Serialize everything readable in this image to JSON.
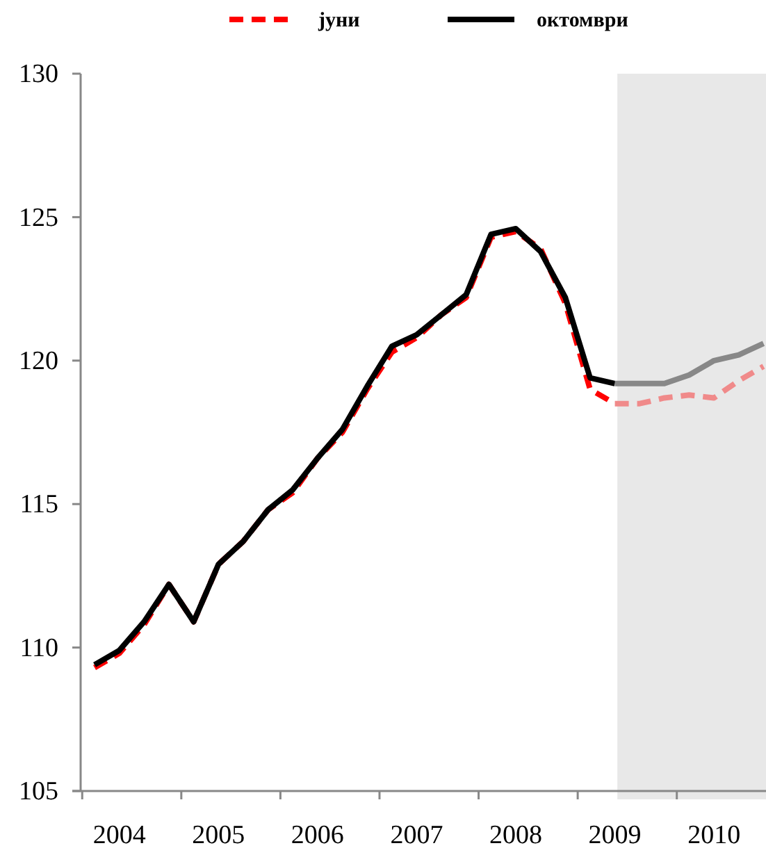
{
  "chart_data": {
    "type": "line",
    "ylim": [
      105,
      130
    ],
    "yticks": [
      105,
      110,
      115,
      120,
      125,
      130
    ],
    "xlim": [
      2003.9,
      2010.9
    ],
    "xticks": [
      {
        "value": 2004,
        "label": null
      },
      {
        "value": 2004.375,
        "label": "2004"
      },
      {
        "value": 2005,
        "label": null
      },
      {
        "value": 2005.375,
        "label": "2005"
      },
      {
        "value": 2006,
        "label": null
      },
      {
        "value": 2006.375,
        "label": "2006"
      },
      {
        "value": 2007,
        "label": null
      },
      {
        "value": 2007.375,
        "label": "2007"
      },
      {
        "value": 2008,
        "label": null
      },
      {
        "value": 2008.375,
        "label": "2008"
      },
      {
        "value": 2009,
        "label": null
      },
      {
        "value": 2009.375,
        "label": "2009"
      },
      {
        "value": 2010,
        "label": null
      },
      {
        "value": 2010.375,
        "label": "2010"
      }
    ],
    "grid": false,
    "legend": "top",
    "marker": "none",
    "bands": [
      {
        "axis": "x",
        "from": 2009.4,
        "to": 2010.9,
        "color": "#e8e8e8"
      }
    ],
    "series": [
      {
        "name": "јуни",
        "color": "#ff0000",
        "line_style": "dashed",
        "x": [
          2004.125,
          2004.375,
          2004.625,
          2004.875,
          2005.125,
          2005.375,
          2005.625,
          2005.875,
          2006.125,
          2006.375,
          2006.625,
          2006.875,
          2007.125,
          2007.375,
          2007.625,
          2007.875,
          2008.125,
          2008.375,
          2008.625,
          2008.875,
          2009.125,
          2009.375
        ],
        "values": [
          109.3,
          109.8,
          110.8,
          112.2,
          110.9,
          112.9,
          113.7,
          114.8,
          115.4,
          116.6,
          117.5,
          119.0,
          120.3,
          120.8,
          121.6,
          122.2,
          124.3,
          124.5,
          123.9,
          122.0,
          119.0,
          118.5
        ]
      },
      {
        "name": "октомври",
        "color": "#000000",
        "line_style": "solid",
        "x": [
          2004.125,
          2004.375,
          2004.625,
          2004.875,
          2005.125,
          2005.375,
          2005.625,
          2005.875,
          2006.125,
          2006.375,
          2006.625,
          2006.875,
          2007.125,
          2007.375,
          2007.625,
          2007.875,
          2008.125,
          2008.375,
          2008.625,
          2008.875,
          2009.125,
          2009.375
        ],
        "values": [
          109.4,
          109.9,
          110.9,
          112.2,
          110.9,
          112.9,
          113.7,
          114.8,
          115.5,
          116.6,
          117.6,
          119.1,
          120.5,
          120.9,
          121.6,
          122.3,
          124.4,
          124.6,
          123.8,
          122.2,
          119.4,
          119.2
        ]
      },
      {
        "color": "#f08a8a",
        "line_style": "dashed",
        "x": [
          2009.375,
          2009.625,
          2009.875,
          2010.125,
          2010.375,
          2010.625,
          2010.875
        ],
        "values": [
          118.5,
          118.5,
          118.7,
          118.8,
          118.7,
          119.3,
          119.8
        ]
      },
      {
        "color": "#888888",
        "line_style": "solid",
        "x": [
          2009.375,
          2009.625,
          2009.875,
          2010.125,
          2010.375,
          2010.625,
          2010.875
        ],
        "values": [
          119.2,
          119.2,
          119.2,
          119.5,
          120.0,
          120.2,
          120.6
        ]
      }
    ]
  }
}
